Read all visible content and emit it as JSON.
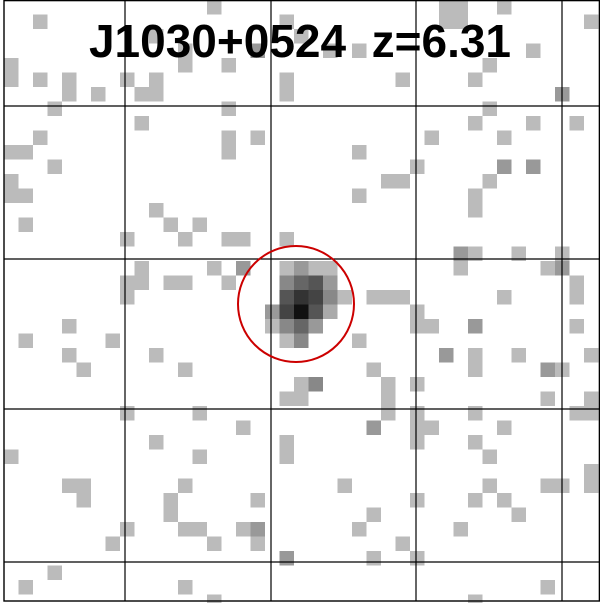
{
  "title": "J1030+0524  z=6.31"
}
